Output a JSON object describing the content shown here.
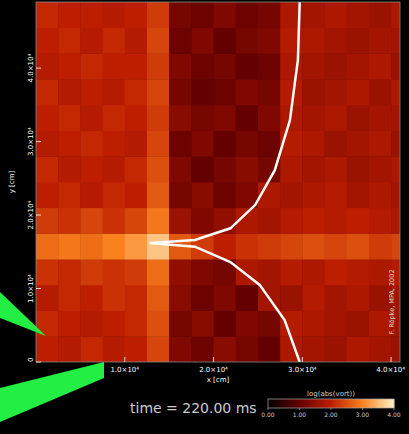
{
  "chart_data": {
    "type": "heatmap",
    "x_label": "x [cm]",
    "y_label": "y [cm]",
    "annotations": [
      "time = 220.00 ms",
      "F. Röpke, MPA, 2002"
    ],
    "xlim": [
      0,
      41000
    ],
    "ylim": [
      0,
      49000
    ],
    "xticks": [
      {
        "value": 10000,
        "label": "1.0×10⁴"
      },
      {
        "value": 20000,
        "label": "2.0×10⁴"
      },
      {
        "value": 30000,
        "label": "3.0×10⁴"
      },
      {
        "value": 40000,
        "label": "4.0×10⁴"
      }
    ],
    "yticks": [
      0,
      {
        "value": 10000,
        "label": "1.0×10⁴"
      },
      {
        "value": 20000,
        "label": "2.0×10⁴"
      },
      {
        "value": 30000,
        "label": "3.0×10⁴"
      },
      {
        "value": 40000,
        "label": "4.0×10⁴"
      }
    ],
    "x_edges": [
      0,
      2500,
      5000,
      7500,
      10000,
      12500,
      15000,
      17500,
      20000,
      22500,
      25000,
      27500,
      30000,
      32500,
      35000,
      37500,
      40000,
      42500
    ],
    "y_edges": [
      0,
      3500,
      7000,
      10500,
      14000,
      17500,
      21000,
      24500,
      28000,
      31500,
      35000,
      38500,
      42000,
      45500,
      49000
    ],
    "cells": [
      [
        2.0,
        1.9,
        2.1,
        1.9,
        2.0,
        2.4,
        1.3,
        1.1,
        1.4,
        1.2,
        1.0,
        1.8,
        1.7,
        1.6,
        1.8,
        1.7,
        1.6
      ],
      [
        2.1,
        2.0,
        1.9,
        2.0,
        2.1,
        2.5,
        1.2,
        1.4,
        1.0,
        1.3,
        1.2,
        1.9,
        1.8,
        1.7,
        1.6,
        1.8,
        1.7
      ],
      [
        1.9,
        2.1,
        2.0,
        2.2,
        2.1,
        2.6,
        1.4,
        1.1,
        1.3,
        1.0,
        1.7,
        1.6,
        1.9,
        1.7,
        1.8,
        1.6,
        1.7
      ],
      [
        2.2,
        2.1,
        2.3,
        2.2,
        2.3,
        2.8,
        1.5,
        1.3,
        1.2,
        1.8,
        1.7,
        1.9,
        1.8,
        2.0,
        1.9,
        1.8,
        1.9
      ],
      [
        2.8,
        2.9,
        2.8,
        3.0,
        3.2,
        3.6,
        2.6,
        2.3,
        2.0,
        2.2,
        2.3,
        2.4,
        2.5,
        2.4,
        2.5,
        2.3,
        2.4
      ],
      [
        2.3,
        2.2,
        2.4,
        2.2,
        2.4,
        2.9,
        1.6,
        1.3,
        1.5,
        1.8,
        1.7,
        1.9,
        2.0,
        1.9,
        2.0,
        1.9,
        1.8
      ],
      [
        2.0,
        2.1,
        1.9,
        2.1,
        2.0,
        2.6,
        1.2,
        1.4,
        1.1,
        1.3,
        1.8,
        1.7,
        1.8,
        1.9,
        1.7,
        1.8,
        1.7
      ],
      [
        2.1,
        1.9,
        2.0,
        1.9,
        2.1,
        2.5,
        1.3,
        1.0,
        1.2,
        1.4,
        1.2,
        1.8,
        1.7,
        1.8,
        1.6,
        1.7,
        1.8
      ],
      [
        1.9,
        2.0,
        2.1,
        2.0,
        1.9,
        2.4,
        1.1,
        1.3,
        1.0,
        1.2,
        1.1,
        1.9,
        1.8,
        1.6,
        1.7,
        1.8,
        1.6
      ],
      [
        2.0,
        2.1,
        1.9,
        2.1,
        2.0,
        2.3,
        1.4,
        1.2,
        1.3,
        1.0,
        1.3,
        1.8,
        1.7,
        1.8,
        1.6,
        1.7,
        1.7
      ],
      [
        2.1,
        1.9,
        2.0,
        1.9,
        2.1,
        2.4,
        1.2,
        1.0,
        1.1,
        1.3,
        1.2,
        1.9,
        1.6,
        1.7,
        1.8,
        1.6,
        1.8
      ],
      [
        1.9,
        2.0,
        2.1,
        2.0,
        2.0,
        2.3,
        1.3,
        1.1,
        1.2,
        1.0,
        1.1,
        1.8,
        1.7,
        1.6,
        1.7,
        1.8,
        1.6
      ],
      [
        2.0,
        2.1,
        1.9,
        2.1,
        1.9,
        2.4,
        1.1,
        1.3,
        1.0,
        1.2,
        1.3,
        1.9,
        1.8,
        1.7,
        1.6,
        1.7,
        1.7
      ],
      [
        2.1,
        2.0,
        2.0,
        1.9,
        2.0,
        2.3,
        1.2,
        1.1,
        1.3,
        1.1,
        1.2,
        1.8,
        1.7,
        1.8,
        1.7,
        1.6,
        1.8
      ]
    ],
    "curve": {
      "color": "#ffffff",
      "x": [
        29700,
        29500,
        28600,
        26900,
        24700,
        21900,
        17900,
        12800,
        17900,
        21900,
        25200,
        28000,
        29700
      ],
      "y": [
        49000,
        41100,
        32900,
        26100,
        21400,
        18200,
        16600,
        16200,
        15700,
        13600,
        10500,
        5700,
        0
      ]
    },
    "colorbar": {
      "label": "log(abs(vort))",
      "range": [
        0,
        4
      ],
      "ticks": [
        {
          "value": 0,
          "label": "0.00"
        },
        {
          "value": 1,
          "label": "1.00"
        },
        {
          "value": 2,
          "label": "2.00"
        },
        {
          "value": 3,
          "label": "3.00"
        },
        {
          "value": 4,
          "label": "4.00"
        }
      ]
    }
  }
}
